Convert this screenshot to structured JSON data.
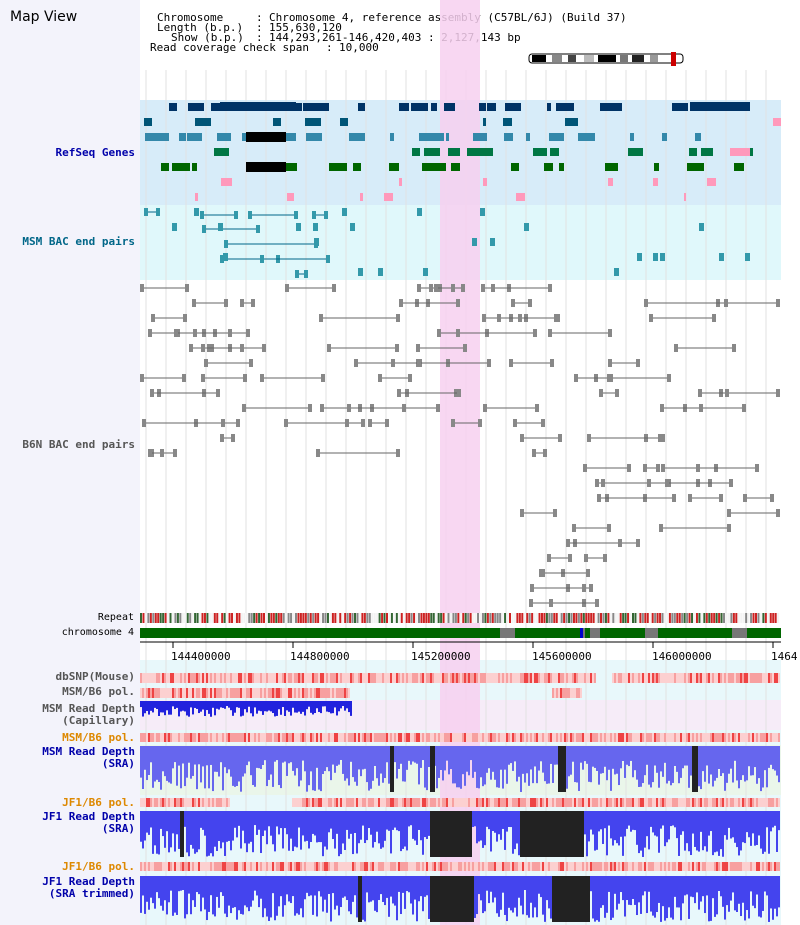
{
  "header": {
    "title": "Map View",
    "chromosome_label": "Chromosome",
    "chromosome_value": "Chromosome 4, reference assembly (C57BL/6J) (Build 37)",
    "length_label": "Length (b.p.)",
    "length_value": "155,630,120",
    "show_label": "Show (b.p.)",
    "show_value": "144,293,261-146,420,403 : 2,127,143 bp",
    "coverage_label": "Read coverage check span",
    "coverage_value": "10,000"
  },
  "tracks": {
    "refseq": "RefSeq Genes",
    "msm_bac": "MSM BAC end pairs",
    "b6n_bac": "B6N BAC end pairs",
    "repeat": "Repeat",
    "chromosome": "chromosome 4",
    "dbsnp": "dbSNP(Mouse)",
    "msm_b6_pol_1": "MSM/B6 pol.",
    "msm_rd_cap_1": "MSM Read Depth",
    "msm_rd_cap_2": "(Capillary)",
    "msm_b6_pol_2": "MSM/B6 pol.",
    "msm_rd_sra_1": "MSM Read Depth",
    "msm_rd_sra_2": "(SRA)",
    "jf1_b6_pol_1": "JF1/B6 pol.",
    "jf1_rd_sra_1": "JF1 Read Depth",
    "jf1_rd_sra_2": "(SRA)",
    "jf1_b6_pol_2": "JF1/B6 pol.",
    "jf1_rd_trim_1": "JF1 Read Depth",
    "jf1_rd_trim_2": "(SRA trimmed)"
  },
  "axis": {
    "ticks": [
      "144400000",
      "144800000",
      "145200000",
      "145600000",
      "146000000",
      "1464"
    ]
  },
  "colors": {
    "refseq_bg": "#d7ecf9",
    "msm_bg": "#e0f8fb",
    "refseq_label": "#0000aa",
    "msm_label": "#006688",
    "pol_label": "#dd8800",
    "depth_label": "#0000aa",
    "highlight": "#f7d0f0",
    "chromosome_band": "#006600"
  }
}
